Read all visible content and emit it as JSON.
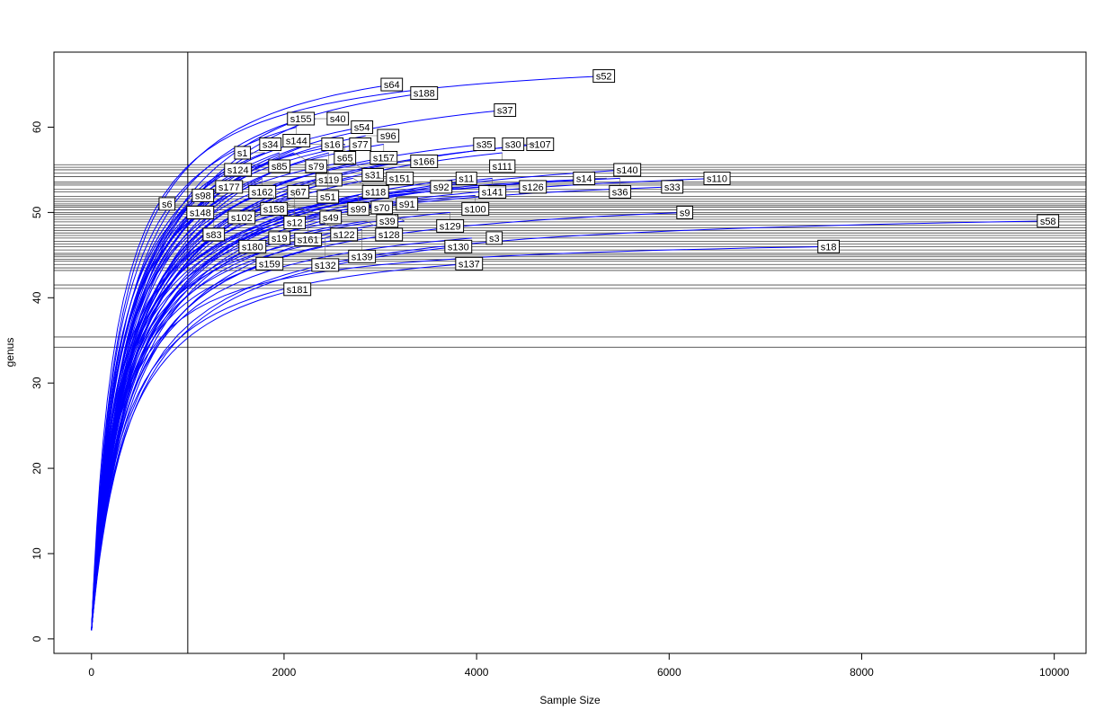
{
  "chart_data": {
    "type": "line",
    "title": "",
    "xlabel": "Sample Size",
    "ylabel": "genus",
    "xlim": [
      -390,
      10330
    ],
    "ylim": [
      -1.7,
      68.8
    ],
    "xticks": [
      0,
      2000,
      4000,
      6000,
      8000,
      10000
    ],
    "yticks": [
      0,
      10,
      20,
      30,
      40,
      50,
      60
    ],
    "vline": 1000,
    "line_color": "#0000ff",
    "hlines": [
      55.6,
      55.3,
      55.0,
      54.6,
      54.2,
      53.6,
      53.4,
      53.2,
      52.7,
      52.4,
      51.9,
      51.6,
      51.3,
      51.0,
      50.8,
      50.6,
      50.3,
      50.0,
      49.8,
      49.5,
      49.2,
      48.9,
      48.5,
      48.2,
      47.9,
      47.6,
      47.3,
      47.0,
      46.6,
      46.3,
      46.0,
      45.6,
      45.2,
      45.0,
      44.8,
      44.5,
      44.3,
      43.9,
      43.5,
      43.2,
      41.5,
      41.1,
      35.4,
      34.2
    ],
    "series": [
      {
        "name": "s52",
        "x": 5322,
        "y": 66
      },
      {
        "name": "s64",
        "x": 3119,
        "y": 65
      },
      {
        "name": "s188",
        "x": 3455,
        "y": 64
      },
      {
        "name": "s37",
        "x": 4295,
        "y": 62
      },
      {
        "name": "s155",
        "x": 2175,
        "y": 61
      },
      {
        "name": "s40",
        "x": 2325,
        "y": 61
      },
      {
        "name": "s144",
        "x": 2129,
        "y": 60
      },
      {
        "name": "s54",
        "x": 2810,
        "y": 60
      },
      {
        "name": "s96",
        "x": 2848,
        "y": 59
      },
      {
        "name": "s34",
        "x": 1858,
        "y": 58
      },
      {
        "name": "s16",
        "x": 2269,
        "y": 58
      },
      {
        "name": "s65",
        "x": 2633,
        "y": 58
      },
      {
        "name": "s77",
        "x": 2792,
        "y": 58
      },
      {
        "name": "s157",
        "x": 3035,
        "y": 58
      },
      {
        "name": "s35",
        "x": 4080,
        "y": 58
      },
      {
        "name": "s107",
        "x": 4660,
        "y": 58
      },
      {
        "name": "s30",
        "x": 4613,
        "y": 58
      },
      {
        "name": "s1",
        "x": 1802,
        "y": 57
      },
      {
        "name": "s85",
        "x": 1951,
        "y": 57
      },
      {
        "name": "s79",
        "x": 2101,
        "y": 57
      },
      {
        "name": "s119",
        "x": 2465,
        "y": 57
      },
      {
        "name": "s111",
        "x": 4267,
        "y": 57
      },
      {
        "name": "s31",
        "x": 2689,
        "y": 56
      },
      {
        "name": "s166",
        "x": 2988,
        "y": 56
      },
      {
        "name": "s124",
        "x": 1755,
        "y": 55
      },
      {
        "name": "s51",
        "x": 2456,
        "y": 55
      },
      {
        "name": "s140",
        "x": 5565,
        "y": 55
      },
      {
        "name": "s162",
        "x": 1774,
        "y": 54
      },
      {
        "name": "s67",
        "x": 2381,
        "y": 54
      },
      {
        "name": "s118",
        "x": 2717,
        "y": 54
      },
      {
        "name": "s151",
        "x": 2969,
        "y": 54
      },
      {
        "name": "s11",
        "x": 3894,
        "y": 54
      },
      {
        "name": "s141",
        "x": 4164,
        "y": 54
      },
      {
        "name": "s14",
        "x": 5350,
        "y": 54
      },
      {
        "name": "s36",
        "x": 5490,
        "y": 54
      },
      {
        "name": "s110",
        "x": 6497,
        "y": 54
      },
      {
        "name": "s177",
        "x": 1429,
        "y": 53
      },
      {
        "name": "s92",
        "x": 3866,
        "y": 53
      },
      {
        "name": "s126",
        "x": 4118,
        "y": 53
      },
      {
        "name": "s33",
        "x": 6032,
        "y": 53
      },
      {
        "name": "s98",
        "x": 1391,
        "y": 52
      },
      {
        "name": "s158",
        "x": 1895,
        "y": 52
      },
      {
        "name": "s12",
        "x": 2110,
        "y": 52
      },
      {
        "name": "s99",
        "x": 2773,
        "y": 52
      },
      {
        "name": "s100",
        "x": 3987,
        "y": 52
      },
      {
        "name": "s6",
        "x": 1018,
        "y": 51
      },
      {
        "name": "s102",
        "x": 1793,
        "y": 51
      },
      {
        "name": "s49",
        "x": 2017,
        "y": 51
      },
      {
        "name": "s91",
        "x": 3044,
        "y": 51
      },
      {
        "name": "s148",
        "x": 1130,
        "y": 50
      },
      {
        "name": "s161",
        "x": 2250,
        "y": 50
      },
      {
        "name": "s129",
        "x": 3725,
        "y": 50
      },
      {
        "name": "s9",
        "x": 6162,
        "y": 50
      },
      {
        "name": "s83",
        "x": 1270,
        "y": 49
      },
      {
        "name": "s122",
        "x": 2390,
        "y": 49
      },
      {
        "name": "s39",
        "x": 2605,
        "y": 49
      },
      {
        "name": "s128",
        "x": 2857,
        "y": 49
      },
      {
        "name": "s70",
        "x": 3249,
        "y": 49
      },
      {
        "name": "s58",
        "x": 9935,
        "y": 49
      },
      {
        "name": "s139",
        "x": 2810,
        "y": 48
      },
      {
        "name": "s132",
        "x": 2428,
        "y": 47
      },
      {
        "name": "s19",
        "x": 2652,
        "y": 47
      },
      {
        "name": "s3",
        "x": 3950,
        "y": 47
      },
      {
        "name": "s180",
        "x": 2372,
        "y": 46
      },
      {
        "name": "s130",
        "x": 3810,
        "y": 46
      },
      {
        "name": "s18",
        "x": 7656,
        "y": 46
      },
      {
        "name": "s159",
        "x": 1849,
        "y": 44
      },
      {
        "name": "s137",
        "x": 3922,
        "y": 44
      },
      {
        "name": "s181",
        "x": 2138,
        "y": 41
      }
    ]
  }
}
